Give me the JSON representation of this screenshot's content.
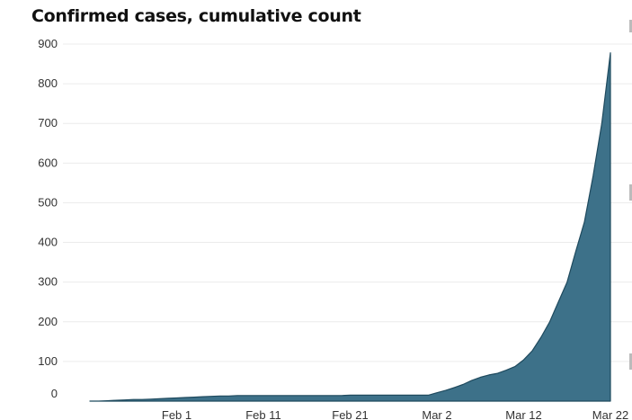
{
  "title": "Confirmed cases, cumulative count",
  "chart_data": {
    "type": "area",
    "title": "Confirmed cases, cumulative count",
    "xlabel": "",
    "ylabel": "",
    "ylim": [
      0,
      900
    ],
    "xlim": [
      "Jan 22",
      "Mar 22"
    ],
    "grid": true,
    "legend": "none",
    "color": "#3d7189",
    "y_ticks": [
      "0",
      "100",
      "200",
      "300",
      "400",
      "500",
      "600",
      "700",
      "800",
      "900"
    ],
    "x_ticks": [
      {
        "date": "Feb 1",
        "label": "Feb 1"
      },
      {
        "date": "Feb 11",
        "label": "Feb 11"
      },
      {
        "date": "Feb 21",
        "label": "Feb 21"
      },
      {
        "date": "Mar 2",
        "label": "Mar 2"
      },
      {
        "date": "Mar 12",
        "label": "Mar 12"
      },
      {
        "date": "Mar 22",
        "label": "Mar 22"
      }
    ],
    "series": [
      {
        "x": [
          "Jan 22",
          "Jan 23",
          "Jan 24",
          "Jan 25",
          "Jan 26",
          "Jan 27",
          "Jan 28",
          "Jan 29",
          "Jan 30",
          "Jan 31",
          "Feb 1",
          "Feb 2",
          "Feb 3",
          "Feb 4",
          "Feb 5",
          "Feb 6",
          "Feb 7",
          "Feb 8",
          "Feb 9",
          "Feb 10",
          "Feb 11",
          "Feb 12",
          "Feb 13",
          "Feb 14",
          "Feb 15",
          "Feb 16",
          "Feb 17",
          "Feb 18",
          "Feb 19",
          "Feb 20",
          "Feb 21",
          "Feb 22",
          "Feb 23",
          "Feb 24",
          "Feb 25",
          "Feb 26",
          "Feb 27",
          "Feb 28",
          "Feb 29",
          "Mar 1",
          "Mar 2",
          "Mar 3",
          "Mar 4",
          "Mar 5",
          "Mar 6",
          "Mar 7",
          "Mar 8",
          "Mar 9",
          "Mar 10",
          "Mar 11",
          "Mar 12",
          "Mar 13",
          "Mar 14",
          "Mar 15",
          "Mar 16",
          "Mar 17",
          "Mar 18",
          "Mar 19",
          "Mar 20",
          "Mar 21",
          "Mar 22"
        ],
        "values": [
          0,
          0,
          1,
          2,
          3,
          4,
          4,
          5,
          6,
          7,
          8,
          9,
          10,
          11,
          12,
          13,
          13,
          14,
          14,
          14,
          14,
          14,
          14,
          14,
          14,
          14,
          14,
          14,
          14,
          14,
          15,
          15,
          15,
          15,
          15,
          15,
          15,
          15,
          15,
          15,
          21,
          27,
          34,
          42,
          52,
          60,
          66,
          70,
          78,
          87,
          104,
          127,
          161,
          200,
          250,
          300,
          377,
          451,
          567,
          700,
          878
        ]
      }
    ]
  }
}
